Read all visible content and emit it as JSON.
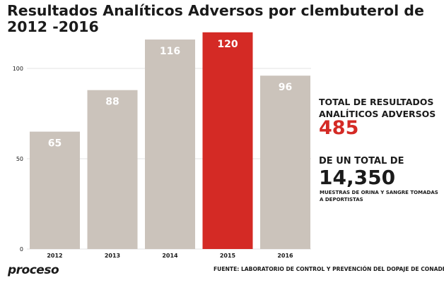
{
  "chart_data": {
    "type": "bar",
    "title": "Resultados Analíticos Adversos por clembuterol de 2012 -2016",
    "categories": [
      "2012",
      "2013",
      "2014",
      "2015",
      "2016"
    ],
    "values": [
      65,
      88,
      116,
      120,
      96
    ],
    "highlight": "2015",
    "yticks": [
      0,
      50,
      100
    ],
    "ylim": [
      0,
      120
    ],
    "grid": true,
    "xlabel": "",
    "ylabel": ""
  },
  "colors": {
    "bar": "#cbc3bb",
    "highlight": "#d42a25",
    "value_text": "#ffffff",
    "grid": "#e3e3e3",
    "text": "#1a1a1a"
  },
  "summary": {
    "total_label": "TOTAL DE RESULTADOS ANALÍTICOS ADVERSOS",
    "total_value": "485",
    "sample_label": "DE UN TOTAL DE",
    "sample_value": "14,350",
    "sample_desc": "MUESTRAS DE ORINA Y SANGRE TOMADAS A DEPORTISTAS"
  },
  "footer": {
    "logo": "proceso",
    "source": "FUENTE: LABORATORIO DE CONTROL Y PREVENCIÓN DEL DOPAJE DE CONADE"
  }
}
